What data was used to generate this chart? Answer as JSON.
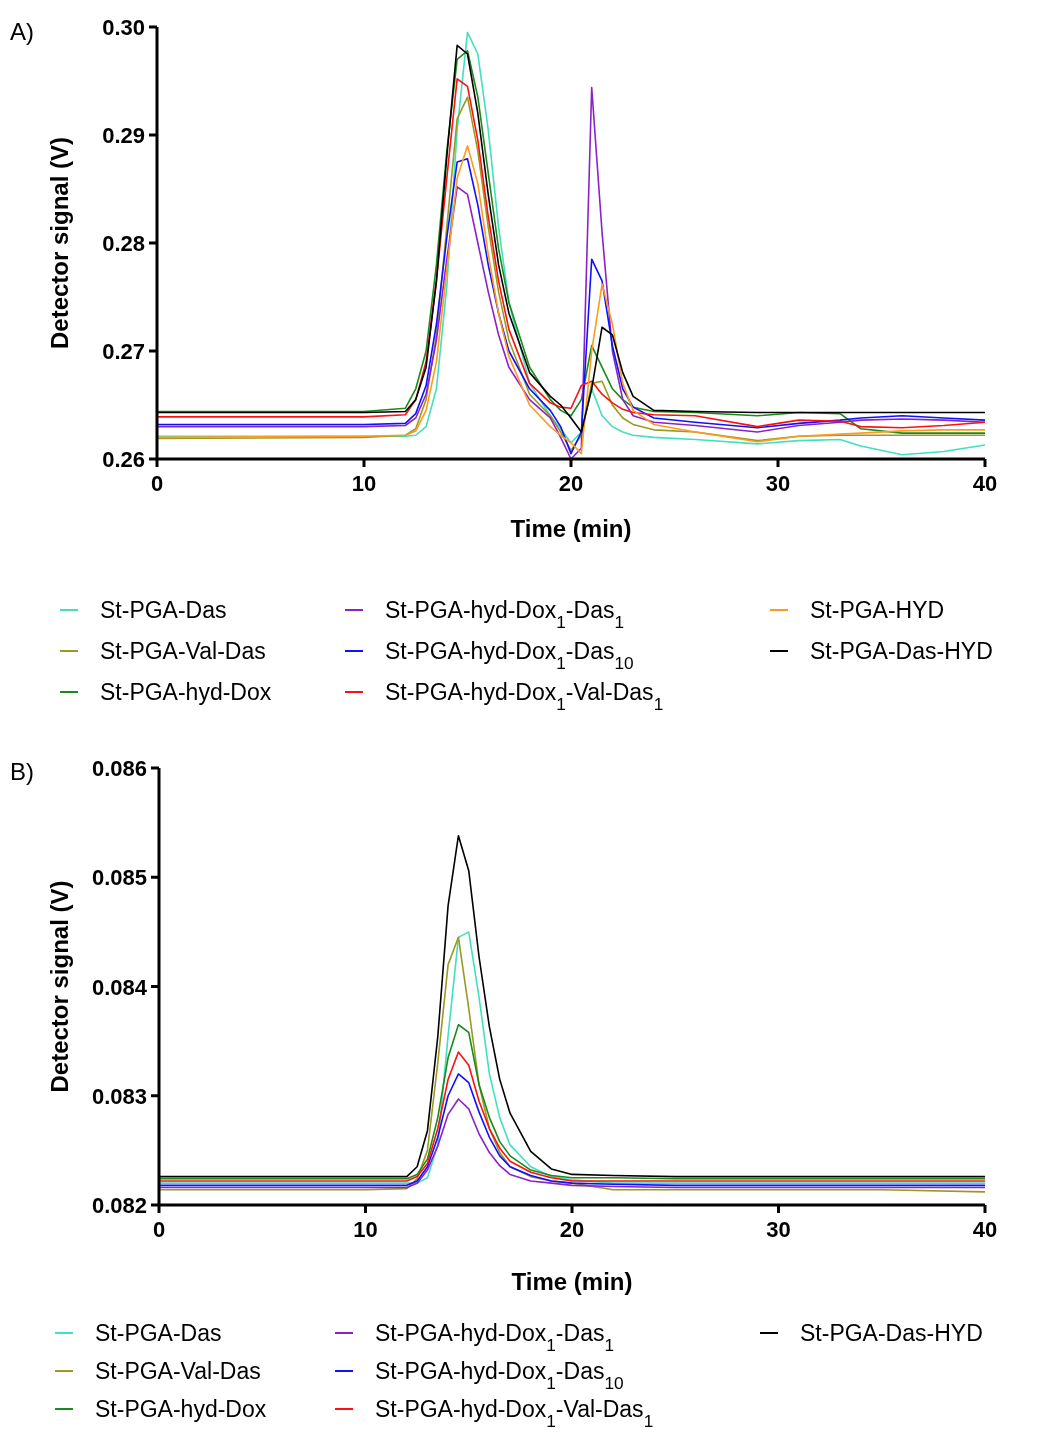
{
  "chart_data": [
    {
      "type": "line",
      "xlabel": "Time (min)",
      "ylabel": "Detector signal (V)",
      "annotations": [
        "A)"
      ],
      "legend": "bottom",
      "xlim": [
        0,
        40
      ],
      "xticks": [
        0,
        10,
        20,
        30,
        40
      ],
      "ylim": [
        0.26,
        0.3
      ],
      "yticks": [
        {
          "value": 0.26,
          "label": "0.26"
        },
        {
          "value": 0.27,
          "label": "0.27"
        },
        {
          "value": 0.28,
          "label": "0.28"
        },
        {
          "value": 0.29,
          "label": "0.29"
        },
        {
          "value": 0.3,
          "label": "0.30"
        }
      ],
      "x": [
        0,
        10,
        12,
        12.5,
        13,
        13.5,
        14,
        14.5,
        15,
        15.5,
        16,
        16.5,
        17,
        18,
        19,
        19.5,
        20,
        20.5,
        21,
        21.5,
        22,
        22.5,
        23,
        24,
        26,
        29,
        31,
        33,
        34,
        36,
        38,
        40
      ],
      "series": [
        {
          "name": "St-PGA-Das",
          "color": "#40e0c0",
          "values": [
            0.2621,
            0.2621,
            0.2621,
            0.2622,
            0.263,
            0.2665,
            0.276,
            0.2905,
            0.2995,
            0.2975,
            0.2905,
            0.2815,
            0.2745,
            0.267,
            0.264,
            0.2628,
            0.2615,
            0.2625,
            0.2665,
            0.264,
            0.263,
            0.2625,
            0.2622,
            0.262,
            0.2618,
            0.2614,
            0.2617,
            0.2618,
            0.2612,
            0.2604,
            0.2607,
            0.2613
          ]
        },
        {
          "name": "St-PGA-Val-Das",
          "color": "#9a9a20",
          "values": [
            0.2619,
            0.262,
            0.2622,
            0.2628,
            0.2655,
            0.2715,
            0.2815,
            0.2915,
            0.2935,
            0.2885,
            0.2815,
            0.2755,
            0.271,
            0.266,
            0.264,
            0.2625,
            0.2608,
            0.2622,
            0.267,
            0.2672,
            0.265,
            0.2638,
            0.2632,
            0.2627,
            0.2625,
            0.2617,
            0.2621,
            0.2622,
            0.2622,
            0.2622,
            0.2622,
            0.2622
          ]
        },
        {
          "name": "St-PGA-hyd-Dox",
          "color": "#1a8a1a",
          "values": [
            0.2644,
            0.2644,
            0.2647,
            0.2665,
            0.27,
            0.278,
            0.2885,
            0.297,
            0.2978,
            0.2935,
            0.2865,
            0.2795,
            0.2745,
            0.2685,
            0.2655,
            0.2645,
            0.264,
            0.2655,
            0.2705,
            0.2685,
            0.2665,
            0.2655,
            0.2648,
            0.2644,
            0.2643,
            0.264,
            0.2643,
            0.2642,
            0.2628,
            0.2624,
            0.2624,
            0.2624
          ]
        },
        {
          "name": "St-PGA-hyd-Dox$_{1}$-Das$_{1}$",
          "color": "#8b22c8",
          "values": [
            0.263,
            0.263,
            0.2631,
            0.2638,
            0.266,
            0.271,
            0.2785,
            0.2852,
            0.2845,
            0.28,
            0.2755,
            0.2715,
            0.2685,
            0.2655,
            0.2638,
            0.262,
            0.26,
            0.261,
            0.2944,
            0.281,
            0.27,
            0.2655,
            0.264,
            0.2634,
            0.2631,
            0.2625,
            0.2631,
            0.2634,
            0.2636,
            0.2637,
            0.2636,
            0.2634
          ]
        },
        {
          "name": "St-PGA-hyd-Dox$_{1}$-Das$_{10}$",
          "color": "#1010ff",
          "values": [
            0.2632,
            0.2632,
            0.2633,
            0.2642,
            0.2668,
            0.2725,
            0.2805,
            0.2875,
            0.2878,
            0.2835,
            0.278,
            0.2735,
            0.27,
            0.2665,
            0.2645,
            0.263,
            0.2605,
            0.2625,
            0.2785,
            0.2765,
            0.2705,
            0.2665,
            0.2648,
            0.2638,
            0.2634,
            0.2629,
            0.2633,
            0.2636,
            0.2638,
            0.264,
            0.2638,
            0.2636
          ]
        },
        {
          "name": "St-PGA-hyd-Dox$_{1}$-Val-Das$_{1}$",
          "color": "#ff1010",
          "values": [
            0.2639,
            0.2639,
            0.2641,
            0.2655,
            0.269,
            0.2765,
            0.286,
            0.2952,
            0.2945,
            0.2895,
            0.2825,
            0.2765,
            0.272,
            0.267,
            0.2652,
            0.2648,
            0.2647,
            0.2668,
            0.2672,
            0.266,
            0.2652,
            0.2646,
            0.2643,
            0.2641,
            0.264,
            0.263,
            0.2636,
            0.2635,
            0.263,
            0.2629,
            0.2631,
            0.2634
          ]
        },
        {
          "name": "St-PGA-HYD",
          "color": "#ff9a20",
          "values": [
            0.262,
            0.2621,
            0.2622,
            0.2626,
            0.2645,
            0.269,
            0.2775,
            0.286,
            0.289,
            0.2855,
            0.279,
            0.2735,
            0.2695,
            0.265,
            0.263,
            0.2622,
            0.2615,
            0.2605,
            0.27,
            0.2762,
            0.2725,
            0.267,
            0.2645,
            0.2632,
            0.2625,
            0.2616,
            0.2621,
            0.2623,
            0.2624,
            0.2626,
            0.2627,
            0.2627
          ]
        },
        {
          "name": "St-PGA-Das-HYD",
          "color": "#000000",
          "values": [
            0.2643,
            0.2643,
            0.2644,
            0.2655,
            0.2685,
            0.2765,
            0.288,
            0.2983,
            0.2975,
            0.292,
            0.2845,
            0.278,
            0.2735,
            0.268,
            0.2658,
            0.265,
            0.2638,
            0.2625,
            0.2665,
            0.2722,
            0.2715,
            0.268,
            0.2658,
            0.2645,
            0.2644,
            0.2643,
            0.2643,
            0.2643,
            0.2643,
            0.2643,
            0.2643,
            0.2643
          ]
        }
      ]
    },
    {
      "type": "line",
      "xlabel": "Time (min)",
      "ylabel": "Detector signal (V)",
      "annotations": [
        "B)"
      ],
      "legend": "bottom",
      "xlim": [
        0,
        40
      ],
      "xticks": [
        0,
        10,
        20,
        30,
        40
      ],
      "ylim": [
        0.082,
        0.086
      ],
      "yticks": [
        0.082,
        0.083,
        0.084,
        0.085,
        0.086
      ],
      "x": [
        0,
        10,
        12,
        12.5,
        13,
        13.5,
        14,
        14.5,
        15,
        15.5,
        16,
        16.5,
        17,
        18,
        19,
        20,
        22,
        25,
        30,
        35,
        40
      ],
      "series": [
        {
          "name": "St-PGA-Das",
          "color": "#40e0c0",
          "values": [
            0.0822,
            0.0822,
            0.0822,
            0.0822,
            0.08225,
            0.08255,
            0.08355,
            0.08445,
            0.0845,
            0.0839,
            0.0832,
            0.0828,
            0.08255,
            0.08235,
            0.08226,
            0.08223,
            0.0822,
            0.0822,
            0.0822,
            0.0822,
            0.0822
          ]
        },
        {
          "name": "St-PGA-Val-Das",
          "color": "#9a9a20",
          "values": [
            0.08214,
            0.08214,
            0.08215,
            0.08224,
            0.0825,
            0.0833,
            0.0842,
            0.08445,
            0.0838,
            0.0831,
            0.0827,
            0.08248,
            0.08235,
            0.08226,
            0.08222,
            0.0822,
            0.08214,
            0.08214,
            0.08214,
            0.08214,
            0.08212
          ]
        },
        {
          "name": "St-PGA-hyd-Dox",
          "color": "#1a8a1a",
          "values": [
            0.08224,
            0.08224,
            0.08224,
            0.08228,
            0.08242,
            0.0828,
            0.08335,
            0.08365,
            0.08358,
            0.0831,
            0.0828,
            0.08258,
            0.08245,
            0.08232,
            0.08227,
            0.08225,
            0.08225,
            0.08224,
            0.08224,
            0.08224,
            0.08224
          ]
        },
        {
          "name": "St-PGA-hyd-Dox$_{1}$-Das$_{1}$",
          "color": "#8b22c8",
          "values": [
            0.08216,
            0.08216,
            0.08216,
            0.0822,
            0.08232,
            0.08254,
            0.08283,
            0.08297,
            0.08288,
            0.08265,
            0.08248,
            0.08236,
            0.08228,
            0.08222,
            0.0822,
            0.08218,
            0.08217,
            0.08216,
            0.08216,
            0.08216,
            0.08216
          ]
        },
        {
          "name": "St-PGA-hyd-Dox$_{1}$-Das$_{10}$",
          "color": "#1010ff",
          "values": [
            0.08218,
            0.08218,
            0.08218,
            0.08222,
            0.08235,
            0.08262,
            0.083,
            0.0832,
            0.08312,
            0.08285,
            0.08262,
            0.08245,
            0.08235,
            0.08227,
            0.08222,
            0.0822,
            0.08219,
            0.08218,
            0.08218,
            0.08218,
            0.08218
          ]
        },
        {
          "name": "St-PGA-hyd-Dox$_{1}$-Val-Das$_{1}$",
          "color": "#ff1010",
          "values": [
            0.08222,
            0.08222,
            0.08222,
            0.08226,
            0.08238,
            0.0827,
            0.08315,
            0.0834,
            0.08328,
            0.08295,
            0.0827,
            0.08252,
            0.0824,
            0.0823,
            0.08225,
            0.08222,
            0.08222,
            0.08222,
            0.08222,
            0.08222,
            0.08222
          ]
        },
        {
          "name": "St-PGA-Das-HYD",
          "color": "#000000",
          "values": [
            0.08226,
            0.08226,
            0.08226,
            0.08235,
            0.08268,
            0.08354,
            0.08474,
            0.08538,
            0.08506,
            0.08427,
            0.08363,
            0.08315,
            0.08284,
            0.08249,
            0.08233,
            0.08228,
            0.08227,
            0.08226,
            0.08226,
            0.08226,
            0.08226
          ]
        }
      ]
    }
  ]
}
